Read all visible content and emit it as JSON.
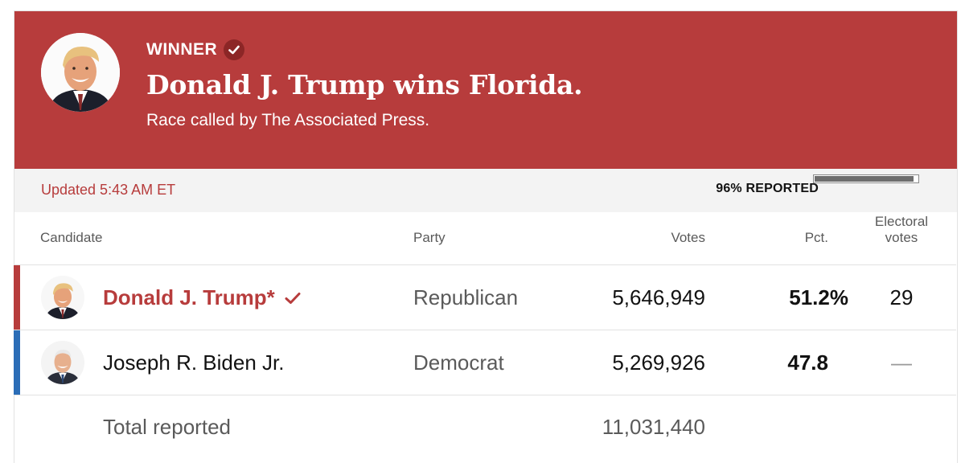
{
  "colors": {
    "republican": "#b73c3c",
    "democrat": "#2b6db7",
    "banner": "#b73c3c"
  },
  "banner": {
    "winner_label": "WINNER",
    "headline": "Donald J. Trump wins Florida.",
    "subhead": "Race called by The Associated Press.",
    "avatar_icon": "trump-portrait"
  },
  "status": {
    "updated": "Updated 5:43 AM ET",
    "reported_label": "96% REPORTED",
    "reported_fraction": 0.96
  },
  "table": {
    "headers": {
      "candidate": "Candidate",
      "party": "Party",
      "votes": "Votes",
      "pct": "Pct.",
      "electoral_line1": "Electoral",
      "electoral_line2": "votes"
    },
    "rows": [
      {
        "name": "Donald J. Trump*",
        "party": "Republican",
        "votes": "5,646,949",
        "pct": "51.2%",
        "electoral": "29",
        "winner": true,
        "avatar_icon": "trump-portrait"
      },
      {
        "name": "Joseph R. Biden Jr.",
        "party": "Democrat",
        "votes": "5,269,926",
        "pct": "47.8",
        "electoral": "—",
        "winner": false,
        "avatar_icon": "biden-portrait"
      }
    ],
    "total_label": "Total reported",
    "total_votes": "11,031,440"
  }
}
